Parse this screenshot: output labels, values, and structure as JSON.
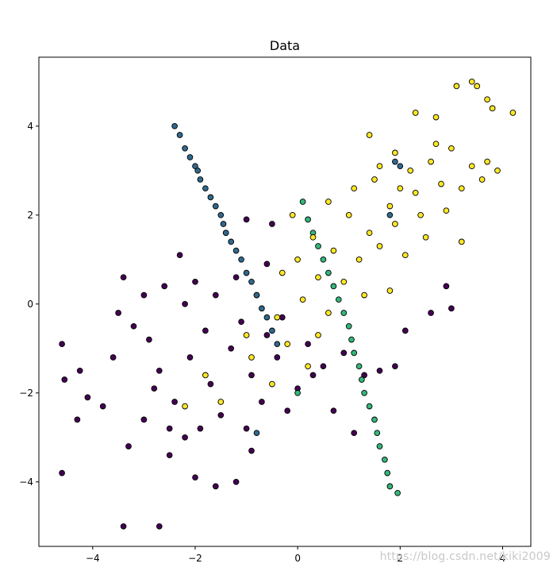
{
  "chart_data": {
    "type": "scatter",
    "title": "Data",
    "xlabel": "",
    "ylabel": "",
    "xlim": [
      -5.05,
      4.55
    ],
    "ylim": [
      -5.45,
      5.55
    ],
    "xticks": [
      -4,
      -2,
      0,
      2,
      4
    ],
    "yticks": [
      -4,
      -2,
      0,
      2,
      4
    ],
    "grid": false,
    "marker_edge_color": "#000000",
    "series": [
      {
        "color": "#440154",
        "points": [
          [
            -4.6,
            -0.9
          ],
          [
            -4.55,
            -1.7
          ],
          [
            -4.6,
            -3.8
          ],
          [
            -4.3,
            -2.6
          ],
          [
            -4.1,
            -2.1
          ],
          [
            -4.25,
            -1.5
          ],
          [
            -3.4,
            -5.0
          ],
          [
            -2.7,
            -5.0
          ],
          [
            -3.5,
            -0.2
          ],
          [
            -3.4,
            0.6
          ],
          [
            -3.2,
            -0.5
          ],
          [
            -3.0,
            0.2
          ],
          [
            -2.9,
            -0.8
          ],
          [
            -2.6,
            0.4
          ],
          [
            -2.3,
            1.1
          ],
          [
            -2.2,
            -3.0
          ],
          [
            -2.5,
            -3.4
          ],
          [
            -2.0,
            -3.9
          ],
          [
            -1.6,
            -4.1
          ],
          [
            -1.2,
            -4.0
          ],
          [
            -0.9,
            -3.3
          ],
          [
            -1.4,
            1.6
          ],
          [
            -1.0,
            1.9
          ],
          [
            -0.5,
            1.8
          ],
          [
            -0.6,
            0.9
          ],
          [
            -2.7,
            -1.5
          ],
          [
            -2.4,
            -2.2
          ],
          [
            -2.1,
            -1.2
          ],
          [
            -1.8,
            -0.6
          ],
          [
            -1.7,
            -1.8
          ],
          [
            -1.5,
            -2.5
          ],
          [
            -1.3,
            -1.0
          ],
          [
            -1.1,
            -0.4
          ],
          [
            -0.9,
            -1.6
          ],
          [
            -0.7,
            -2.2
          ],
          [
            -0.6,
            -0.7
          ],
          [
            -0.4,
            -1.2
          ],
          [
            -0.3,
            -0.3
          ],
          [
            0.0,
            -1.9
          ],
          [
            0.2,
            -0.9
          ],
          [
            0.5,
            -1.4
          ],
          [
            0.7,
            -2.4
          ],
          [
            0.9,
            -1.1
          ],
          [
            1.1,
            -2.9
          ],
          [
            1.3,
            -1.6
          ],
          [
            1.6,
            -1.5
          ],
          [
            1.9,
            -1.4
          ],
          [
            2.1,
            -0.6
          ],
          [
            2.6,
            -0.2
          ],
          [
            2.9,
            0.4
          ],
          [
            3.0,
            -0.1
          ],
          [
            -2.0,
            0.5
          ],
          [
            -1.6,
            0.2
          ],
          [
            -2.8,
            -1.9
          ],
          [
            -3.0,
            -2.6
          ],
          [
            -2.5,
            -2.8
          ],
          [
            -1.0,
            -2.8
          ],
          [
            -0.2,
            -2.4
          ],
          [
            0.3,
            -1.6
          ],
          [
            -3.6,
            -1.2
          ],
          [
            -3.8,
            -2.3
          ],
          [
            -3.3,
            -3.2
          ],
          [
            -2.2,
            0.0
          ],
          [
            -1.2,
            0.6
          ],
          [
            -0.8,
            0.2
          ],
          [
            -1.9,
            -2.8
          ]
        ]
      },
      {
        "color": "#31688e",
        "points": [
          [
            -2.4,
            4.0
          ],
          [
            -2.3,
            3.8
          ],
          [
            -2.2,
            3.5
          ],
          [
            -2.1,
            3.3
          ],
          [
            -2.0,
            3.1
          ],
          [
            -1.95,
            3.0
          ],
          [
            -1.9,
            2.8
          ],
          [
            -1.8,
            2.6
          ],
          [
            -1.7,
            2.4
          ],
          [
            -1.6,
            2.2
          ],
          [
            -1.5,
            2.0
          ],
          [
            -1.45,
            1.8
          ],
          [
            -1.4,
            1.6
          ],
          [
            -1.3,
            1.4
          ],
          [
            -1.2,
            1.2
          ],
          [
            -1.1,
            1.0
          ],
          [
            -1.0,
            0.7
          ],
          [
            -0.9,
            0.5
          ],
          [
            -0.8,
            0.2
          ],
          [
            -0.7,
            -0.1
          ],
          [
            -0.6,
            -0.3
          ],
          [
            -0.5,
            -0.6
          ],
          [
            -0.4,
            -0.9
          ],
          [
            -0.8,
            -2.9
          ],
          [
            1.9,
            3.2
          ],
          [
            2.0,
            3.1
          ],
          [
            1.8,
            2.0
          ]
        ]
      },
      {
        "color": "#35b779",
        "points": [
          [
            0.1,
            2.3
          ],
          [
            0.2,
            1.9
          ],
          [
            0.3,
            1.6
          ],
          [
            0.4,
            1.3
          ],
          [
            0.5,
            1.0
          ],
          [
            0.6,
            0.7
          ],
          [
            0.7,
            0.4
          ],
          [
            0.8,
            0.1
          ],
          [
            0.9,
            -0.2
          ],
          [
            1.0,
            -0.5
          ],
          [
            1.05,
            -0.8
          ],
          [
            1.1,
            -1.1
          ],
          [
            1.2,
            -1.4
          ],
          [
            1.25,
            -1.7
          ],
          [
            1.3,
            -2.0
          ],
          [
            1.4,
            -2.3
          ],
          [
            1.5,
            -2.6
          ],
          [
            1.55,
            -2.9
          ],
          [
            1.6,
            -3.2
          ],
          [
            1.7,
            -3.5
          ],
          [
            1.75,
            -3.8
          ],
          [
            1.8,
            -4.1
          ],
          [
            1.95,
            -4.25
          ],
          [
            0.0,
            -2.0
          ]
        ]
      },
      {
        "color": "#fde725",
        "points": [
          [
            3.4,
            5.0
          ],
          [
            3.5,
            4.9
          ],
          [
            3.1,
            4.9
          ],
          [
            3.8,
            4.4
          ],
          [
            4.2,
            4.3
          ],
          [
            3.7,
            4.6
          ],
          [
            2.3,
            4.3
          ],
          [
            2.7,
            4.2
          ],
          [
            1.4,
            3.8
          ],
          [
            1.9,
            3.4
          ],
          [
            2.2,
            3.0
          ],
          [
            2.6,
            3.2
          ],
          [
            3.0,
            3.5
          ],
          [
            3.4,
            3.1
          ],
          [
            3.7,
            3.2
          ],
          [
            3.9,
            3.0
          ],
          [
            1.1,
            2.6
          ],
          [
            1.5,
            2.8
          ],
          [
            1.8,
            2.2
          ],
          [
            2.3,
            2.5
          ],
          [
            2.8,
            2.7
          ],
          [
            3.2,
            2.6
          ],
          [
            3.6,
            2.8
          ],
          [
            0.6,
            2.3
          ],
          [
            1.0,
            2.0
          ],
          [
            1.4,
            1.6
          ],
          [
            1.9,
            1.8
          ],
          [
            2.4,
            2.0
          ],
          [
            2.9,
            2.1
          ],
          [
            3.2,
            1.4
          ],
          [
            0.3,
            1.5
          ],
          [
            0.7,
            1.2
          ],
          [
            1.2,
            1.0
          ],
          [
            1.6,
            1.3
          ],
          [
            2.1,
            1.1
          ],
          [
            2.5,
            1.5
          ],
          [
            0.0,
            1.0
          ],
          [
            0.4,
            0.6
          ],
          [
            0.9,
            0.5
          ],
          [
            1.3,
            0.2
          ],
          [
            1.8,
            0.3
          ],
          [
            -0.3,
            0.7
          ],
          [
            0.1,
            0.1
          ],
          [
            0.6,
            -0.2
          ],
          [
            -0.4,
            -0.3
          ],
          [
            -0.2,
            -0.9
          ],
          [
            0.2,
            -1.4
          ],
          [
            -0.5,
            -1.8
          ],
          [
            -0.9,
            -1.2
          ],
          [
            -1.5,
            -2.2
          ],
          [
            -2.2,
            -2.3
          ],
          [
            -1.8,
            -1.6
          ],
          [
            -1.0,
            -0.7
          ],
          [
            0.4,
            -0.7
          ],
          [
            -0.1,
            2.0
          ],
          [
            2.0,
            2.6
          ],
          [
            2.7,
            3.6
          ],
          [
            1.6,
            3.1
          ]
        ]
      }
    ]
  },
  "watermark": "https://blog.csdn.net/kiki2009"
}
